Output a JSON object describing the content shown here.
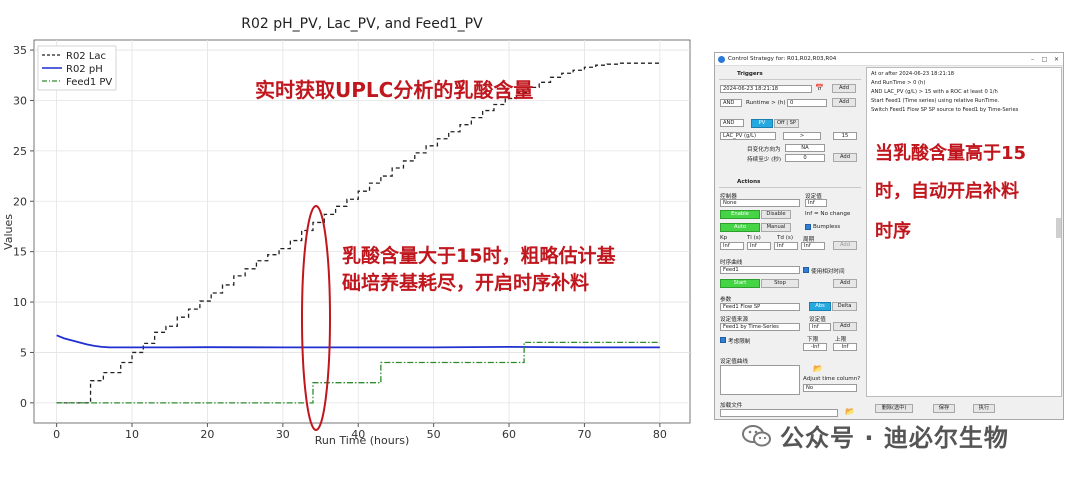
{
  "chart_data": {
    "type": "line",
    "title": "R02 pH_PV, Lac_PV, and Feed1_PV",
    "xlabel": "Run Time (hours)",
    "ylabel": "Values",
    "xlim": [
      -3,
      84
    ],
    "ylim": [
      -2,
      36
    ],
    "xticks": [
      0,
      10,
      20,
      30,
      40,
      50,
      60,
      70,
      80
    ],
    "yticks": [
      0,
      5,
      10,
      15,
      20,
      25,
      30,
      35
    ],
    "grid": true,
    "legend": "top-left",
    "series": [
      {
        "name": "R02 Lac",
        "color": "#222222",
        "style": "step-dashed",
        "x": [
          0,
          4.5,
          6.2,
          8.5,
          10,
          11.5,
          13,
          14.5,
          16,
          17.5,
          19,
          20.5,
          22,
          23.5,
          25,
          26.5,
          28,
          29.5,
          31,
          32.5,
          34,
          35.5,
          37,
          38.5,
          40,
          41.5,
          43,
          44.5,
          46,
          47.5,
          49,
          50.5,
          52,
          53.5,
          55,
          56.5,
          58,
          59.5,
          61,
          62.5,
          64,
          65.5,
          67,
          68.5,
          70,
          71.5,
          73,
          74.5,
          75.5,
          80
        ],
        "y": [
          0,
          2.2,
          3,
          4,
          5,
          5.9,
          7,
          7.6,
          8.5,
          9.3,
          10.1,
          10.9,
          11.7,
          12.6,
          13.3,
          14.1,
          14.7,
          15.3,
          16.1,
          17.1,
          17.9,
          18.7,
          19.5,
          20.2,
          21,
          21.8,
          22.5,
          23.3,
          24,
          24.8,
          25.5,
          26.2,
          26.9,
          27.6,
          28.3,
          29,
          29.6,
          30.2,
          30.8,
          31.3,
          31.8,
          32.3,
          32.7,
          33,
          33.3,
          33.5,
          33.6,
          33.7,
          33.7,
          33.7
        ]
      },
      {
        "name": "R02 pH",
        "color": "#1f2fd0",
        "style": "solid",
        "x": [
          0,
          1,
          2,
          3,
          4,
          5,
          6,
          7,
          8,
          10,
          15,
          20,
          30,
          40,
          50,
          60,
          70,
          80
        ],
        "y": [
          6.7,
          6.4,
          6.2,
          6.0,
          5.8,
          5.65,
          5.55,
          5.5,
          5.5,
          5.5,
          5.5,
          5.52,
          5.5,
          5.5,
          5.5,
          5.55,
          5.5,
          5.5
        ]
      },
      {
        "name": "Feed1 PV",
        "color": "#2e8b2e",
        "style": "step-dashdot",
        "x": [
          0,
          34,
          43,
          62,
          80
        ],
        "y": [
          0,
          2.0,
          4.0,
          6.0,
          6.0
        ]
      }
    ]
  },
  "annotations": {
    "top_note": "实时获取UPLC分析的乳酸含量",
    "mid_note_line1": "乳酸含量大于15时，粗略估计基",
    "mid_note_line2": "础培养基耗尽，开启时序补料",
    "right_note_line1": "当乳酸含量高于15",
    "right_note_line2": "时，自动开启补料",
    "right_note_line3": "时序"
  },
  "dialog": {
    "title": "Control Strategy for: R01,R02,R03,R04",
    "triggers": {
      "header": "Triggers",
      "date_value": "2024-06-23 18:21:18",
      "add_label": "Add",
      "and_label": "AND",
      "runtime_label": "Runtime > (h)",
      "runtime_value": "0",
      "and2_label": "AND",
      "pv_label": "PV",
      "offsp_label": "Off | SP",
      "lac_select": "LAC_PV (g/L)",
      "op_value": ">",
      "threshold": "15",
      "roc_label": "目变化方向为",
      "roc_value": "NA",
      "min_label": "持续至少 (秒)",
      "min_value": "0",
      "add2_label": "Add"
    },
    "actions": {
      "header": "Actions",
      "controller_label": "控制器",
      "setpoint_label": "设定值",
      "controller_value": "None",
      "setpoint_value": "Inf",
      "enable_label": "Enable",
      "disable_label": "Disable",
      "inf_note": "Inf = No change",
      "auto_label": "Auto",
      "manual_label": "Manual",
      "bumpless_label": "Bumpless",
      "kp_label": "Kp",
      "ti_label": "Ti (s)",
      "td_label": "Td (s)",
      "period_label": "周期",
      "kp_value": "Inf",
      "ti_value": "Inf",
      "td_value": "Inf",
      "period_value": "Inf",
      "add_label": "Add"
    },
    "timeseries": {
      "label": "时序曲线",
      "value": "Feed1",
      "relative_label": "使用相对时间",
      "start_label": "Start",
      "stop_label": "Stop",
      "add_label": "Add"
    },
    "param": {
      "label": "参数",
      "value": "Feed1 Flow SP",
      "abs_label": "Abs",
      "delta_label": "Delta",
      "source_label": "设定值来源",
      "setval_label": "设定值",
      "source_value": "Feed1 by Time-Series",
      "setval_value": "Inf",
      "add_label": "Add",
      "limit_label": "考虑限制",
      "lower_label": "下限",
      "upper_label": "上限",
      "lower_value": "-Inf",
      "upper_value": "Inf"
    },
    "curve": {
      "label": "设定值曲线",
      "adjust_label": "Adjust time column?",
      "adjust_value": "No"
    },
    "file": {
      "label": "加载文件"
    },
    "log": [
      "At or after   2024-06-23 18:21:18",
      "And RunTime > 0 (h)",
      "AND LAC_PV (g/L) > 15 with a ROC at least 0 1/h",
      "Start  Feed1 (Time series) using relative RunTime.",
      "Switch Feed1 Flow SP SP source to Feed1 by Time-Series"
    ],
    "bottom": {
      "delete_label": "删除(选中)",
      "save_label": "保存",
      "run_label": "执行"
    }
  },
  "watermark": {
    "text": "公众号 · 迪必尔生物"
  }
}
